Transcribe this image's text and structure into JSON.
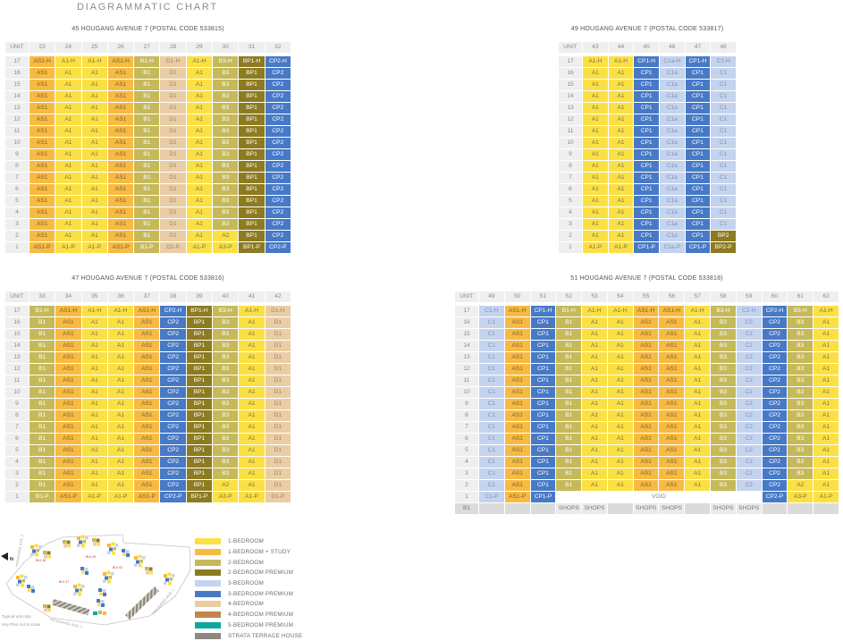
{
  "page_title": "DIAGRAMMATIC CHART",
  "unit_header": "UNIT",
  "shops_label": "SHOPS",
  "code_types": {
    "A1": "1br",
    "A2": "1br",
    "A3": "1br",
    "AS1": "1brs",
    "B1": "2br",
    "B3": "2br",
    "BP1": "2brp",
    "BP2": "2brp",
    "C1": "3br",
    "C1a": "3br",
    "C2": "3br",
    "CP1": "3brp",
    "CP2": "3brp",
    "D1": "4br",
    "VOID": "void"
  },
  "type_colors": {
    "1br": {
      "bg": "#FBE044",
      "fg": "#77704E"
    },
    "1brs": {
      "bg": "#F7BA42",
      "fg": "#7A6238"
    },
    "2br": {
      "bg": "#C6B95A",
      "fg": "#FFFFFF"
    },
    "2brp": {
      "bg": "#8C7B21",
      "fg": "#FFFFFF"
    },
    "3br": {
      "bg": "#C4D3EE",
      "fg": "#8292B2"
    },
    "3brp": {
      "bg": "#4779C6",
      "fg": "#FFFFFF"
    },
    "4br": {
      "bg": "#EACDA5",
      "fg": "#9F8566"
    },
    "void": {
      "bg": "#FFFFFF",
      "fg": "#8A8A8A"
    }
  },
  "blocks": [
    {
      "title": "45 HOUGANG AVENUE 7 (POSTAL CODE 533815)",
      "units": [
        "23",
        "24",
        "25",
        "26",
        "27",
        "28",
        "29",
        "30",
        "31",
        "32"
      ],
      "floors": [
        "17",
        "16",
        "15",
        "14",
        "13",
        "12",
        "11",
        "10",
        "9",
        "8",
        "7",
        "6",
        "5",
        "4",
        "3",
        "2",
        "1"
      ],
      "rows": [
        [
          "AS1-H",
          "A1-H",
          "A1-H",
          "AS1-H",
          "B1-H",
          "D1-H",
          "A1-H",
          "B3-H",
          "BP1-H",
          "CP2-H"
        ],
        [
          "AS1",
          "A1",
          "A1",
          "AS1",
          "B1",
          "D1",
          "A1",
          "B3",
          "BP1",
          "CP2"
        ],
        [
          "AS1",
          "A1",
          "A1",
          "AS1",
          "B1",
          "D1",
          "A1",
          "B3",
          "BP1",
          "CP2"
        ],
        [
          "AS1",
          "A1",
          "A1",
          "AS1",
          "B1",
          "D1",
          "A1",
          "B3",
          "BP1",
          "CP2"
        ],
        [
          "AS1",
          "A1",
          "A1",
          "AS1",
          "B1",
          "D1",
          "A1",
          "B3",
          "BP1",
          "CP2"
        ],
        [
          "AS1",
          "A1",
          "A1",
          "AS1",
          "B1",
          "D1",
          "A1",
          "B3",
          "BP1",
          "CP2"
        ],
        [
          "AS1",
          "A1",
          "A1",
          "AS1",
          "B1",
          "D1",
          "A1",
          "B3",
          "BP1",
          "CP2"
        ],
        [
          "AS1",
          "A1",
          "A1",
          "AS1",
          "B1",
          "D1",
          "A1",
          "B3",
          "BP1",
          "CP2"
        ],
        [
          "AS1",
          "A1",
          "A1",
          "AS1",
          "B1",
          "D1",
          "A1",
          "B3",
          "BP1",
          "CP2"
        ],
        [
          "AS1",
          "A1",
          "A1",
          "AS1",
          "B1",
          "D1",
          "A1",
          "B3",
          "BP1",
          "CP2"
        ],
        [
          "AS1",
          "A1",
          "A1",
          "AS1",
          "B1",
          "D1",
          "A1",
          "B3",
          "BP1",
          "CP2"
        ],
        [
          "AS1",
          "A1",
          "A1",
          "AS1",
          "B1",
          "D1",
          "A1",
          "B3",
          "BP1",
          "CP2"
        ],
        [
          "AS1",
          "A1",
          "A1",
          "AS1",
          "B1",
          "D1",
          "A1",
          "B3",
          "BP1",
          "CP2"
        ],
        [
          "AS1",
          "A1",
          "A1",
          "AS1",
          "B1",
          "D1",
          "A1",
          "B3",
          "BP1",
          "CP2"
        ],
        [
          "AS1",
          "A1",
          "A1",
          "AS1",
          "B1",
          "D1",
          "A1",
          "B3",
          "BP1",
          "CP2"
        ],
        [
          "AS1",
          "A1",
          "A1",
          "AS1",
          "B1",
          "D1",
          "A1",
          "A2",
          "BP1",
          "CP2"
        ],
        [
          "AS1-P",
          "A1-P",
          "A1-P",
          "AS1-P",
          "B1-P",
          "D1-P",
          "A1-P",
          "A3-P",
          "BP1-P",
          "CP2-P"
        ]
      ]
    },
    {
      "title": "49 HOUGANG AVENUE 7 (POSTAL CODE 533817)",
      "units": [
        "43",
        "44",
        "45",
        "46",
        "47",
        "48"
      ],
      "floors": [
        "17",
        "16",
        "15",
        "14",
        "13",
        "12",
        "11",
        "10",
        "9",
        "8",
        "7",
        "6",
        "5",
        "4",
        "3",
        "2",
        "1"
      ],
      "rows": [
        [
          "A1-H",
          "A1-H",
          "CP1-H",
          "C1a-H",
          "CP1-H",
          "C1-H"
        ],
        [
          "A1",
          "A1",
          "CP1",
          "C1a",
          "CP1",
          "C1"
        ],
        [
          "A1",
          "A1",
          "CP1",
          "C1a",
          "CP1",
          "C1"
        ],
        [
          "A1",
          "A1",
          "CP1",
          "C1a",
          "CP1",
          "C1"
        ],
        [
          "A1",
          "A1",
          "CP1",
          "C1a",
          "CP1",
          "C1"
        ],
        [
          "A1",
          "A1",
          "CP1",
          "C1a",
          "CP1",
          "C1"
        ],
        [
          "A1",
          "A1",
          "CP1",
          "C1a",
          "CP1",
          "C1"
        ],
        [
          "A1",
          "A1",
          "CP1",
          "C1a",
          "CP1",
          "C1"
        ],
        [
          "A1",
          "A1",
          "CP1",
          "C1a",
          "CP1",
          "C1"
        ],
        [
          "A1",
          "A1",
          "CP1",
          "C1a",
          "CP1",
          "C1"
        ],
        [
          "A1",
          "A1",
          "CP1",
          "C1a",
          "CP1",
          "C1"
        ],
        [
          "A1",
          "A1",
          "CP1",
          "C1a",
          "CP1",
          "C1"
        ],
        [
          "A1",
          "A1",
          "CP1",
          "C1a",
          "CP1",
          "C1"
        ],
        [
          "A1",
          "A1",
          "CP1",
          "C1a",
          "CP1",
          "C1"
        ],
        [
          "A1",
          "A1",
          "CP1",
          "C1a",
          "CP1",
          "C1"
        ],
        [
          "A1",
          "A1",
          "CP1",
          "C1a",
          "CP1",
          "BP2"
        ],
        [
          "A1-P",
          "A1-P",
          "CP1-P",
          "C1a-P",
          "CP1-P",
          "BP2-P"
        ]
      ]
    },
    {
      "title": "47 HOUGANG AVENUE 7 (POSTAL CODE 533816)",
      "units": [
        "33",
        "34",
        "35",
        "36",
        "37",
        "38",
        "39",
        "40",
        "41",
        "42"
      ],
      "floors": [
        "17",
        "16",
        "15",
        "14",
        "13",
        "12",
        "11",
        "10",
        "9",
        "8",
        "7",
        "6",
        "5",
        "4",
        "3",
        "2",
        "1"
      ],
      "rows": [
        [
          "B1-H",
          "AS1-H",
          "A1-H",
          "A1-H",
          "AS1-H",
          "CP2-H",
          "BP1-H",
          "B3-H",
          "A1-H",
          "D1-H"
        ],
        [
          "B1",
          "AS1",
          "A1",
          "A1",
          "AS1",
          "CP2",
          "BP1",
          "B3",
          "A1",
          "D1"
        ],
        [
          "B1",
          "AS1",
          "A1",
          "A1",
          "AS1",
          "CP2",
          "BP1",
          "B3",
          "A1",
          "D1"
        ],
        [
          "B1",
          "AS1",
          "A1",
          "A1",
          "AS1",
          "CP2",
          "BP1",
          "B3",
          "A1",
          "D1"
        ],
        [
          "B1",
          "AS1",
          "A1",
          "A1",
          "AS1",
          "CP2",
          "BP1",
          "B3",
          "A1",
          "D1"
        ],
        [
          "B1",
          "AS1",
          "A1",
          "A1",
          "AS1",
          "CP2",
          "BP1",
          "B3",
          "A1",
          "D1"
        ],
        [
          "B1",
          "AS1",
          "A1",
          "A1",
          "AS1",
          "CP2",
          "BP1",
          "B3",
          "A1",
          "D1"
        ],
        [
          "B1",
          "AS1",
          "A1",
          "A1",
          "AS1",
          "CP2",
          "BP1",
          "B3",
          "A1",
          "D1"
        ],
        [
          "B1",
          "AS1",
          "A1",
          "A1",
          "AS1",
          "CP2",
          "BP1",
          "B3",
          "A1",
          "D1"
        ],
        [
          "B1",
          "AS1",
          "A1",
          "A1",
          "AS1",
          "CP2",
          "BP1",
          "B3",
          "A1",
          "D1"
        ],
        [
          "B1",
          "AS1",
          "A1",
          "A1",
          "AS1",
          "CP2",
          "BP1",
          "B3",
          "A1",
          "D1"
        ],
        [
          "B1",
          "AS1",
          "A1",
          "A1",
          "AS1",
          "CP2",
          "BP1",
          "B3",
          "A1",
          "D1"
        ],
        [
          "B1",
          "AS1",
          "A1",
          "A1",
          "AS1",
          "CP2",
          "BP1",
          "B3",
          "A1",
          "D1"
        ],
        [
          "B1",
          "AS1",
          "A1",
          "A1",
          "AS1",
          "CP2",
          "BP1",
          "B3",
          "A1",
          "D1"
        ],
        [
          "B1",
          "AS1",
          "A1",
          "A1",
          "AS1",
          "CP2",
          "BP1",
          "B3",
          "A1",
          "D1"
        ],
        [
          "B1",
          "AS1",
          "A1",
          "A1",
          "AS1",
          "CP2",
          "BP1",
          "A2",
          "A1",
          "D1"
        ],
        [
          "B1-P",
          "AS1-P",
          "A1-P",
          "A1-P",
          "AS1-P",
          "CP2-P",
          "BP1-P",
          "A3-P",
          "A1-P",
          "D1-P"
        ]
      ]
    },
    {
      "title": "51 HOUGANG AVENUE 7 (POSTAL CODE 533818)",
      "units": [
        "49",
        "50",
        "51",
        "52",
        "53",
        "54",
        "55",
        "56",
        "57",
        "58",
        "59",
        "60",
        "61",
        "62"
      ],
      "floors": [
        "17",
        "16",
        "15",
        "14",
        "13",
        "12",
        "11",
        "10",
        "9",
        "8",
        "7",
        "6",
        "5",
        "4",
        "3",
        "2",
        "1"
      ],
      "rows": [
        [
          "C1-H",
          "AS1-H",
          "CP1-H",
          "B1-H",
          "A1-H",
          "A1-H",
          "AS1-H",
          "AS1-H",
          "A1-H",
          "B3-H",
          "C2-H",
          "CP2-H",
          "B3-H",
          "A1-H"
        ],
        [
          "C1",
          "AS1",
          "CP1",
          "B1",
          "A1",
          "A1",
          "AS1",
          "AS1",
          "A1",
          "B3",
          "C2",
          "CP2",
          "B3",
          "A1"
        ],
        [
          "C1",
          "AS1",
          "CP1",
          "B1",
          "A1",
          "A1",
          "AS1",
          "AS1",
          "A1",
          "B3",
          "C2",
          "CP2",
          "B3",
          "A1"
        ],
        [
          "C1",
          "AS1",
          "CP1",
          "B1",
          "A1",
          "A1",
          "AS1",
          "AS1",
          "A1",
          "B3",
          "C2",
          "CP2",
          "B3",
          "A1"
        ],
        [
          "C1",
          "AS1",
          "CP1",
          "B1",
          "A1",
          "A1",
          "AS1",
          "AS1",
          "A1",
          "B3",
          "C2",
          "CP2",
          "B3",
          "A1"
        ],
        [
          "C1",
          "AS1",
          "CP1",
          "B1",
          "A1",
          "A1",
          "AS1",
          "AS1",
          "A1",
          "B3",
          "C2",
          "CP2",
          "B3",
          "A1"
        ],
        [
          "C1",
          "AS1",
          "CP1",
          "B1",
          "A1",
          "A1",
          "AS1",
          "AS1",
          "A1",
          "B3",
          "C2",
          "CP2",
          "B3",
          "A1"
        ],
        [
          "C1",
          "AS1",
          "CP1",
          "B1",
          "A1",
          "A1",
          "AS1",
          "AS1",
          "A1",
          "B3",
          "C2",
          "CP2",
          "B3",
          "A1"
        ],
        [
          "C1",
          "AS1",
          "CP1",
          "B1",
          "A1",
          "A1",
          "AS1",
          "AS1",
          "A1",
          "B3",
          "C2",
          "CP2",
          "B3",
          "A1"
        ],
        [
          "C1",
          "AS1",
          "CP1",
          "B1",
          "A1",
          "A1",
          "AS1",
          "AS1",
          "A1",
          "B3",
          "C2",
          "CP2",
          "B3",
          "A1"
        ],
        [
          "C1",
          "AS1",
          "CP1",
          "B1",
          "A1",
          "A1",
          "AS1",
          "AS1",
          "A1",
          "B3",
          "C2",
          "CP2",
          "B3",
          "A1"
        ],
        [
          "C1",
          "AS1",
          "CP1",
          "B1",
          "A1",
          "A1",
          "AS1",
          "AS1",
          "A1",
          "B3",
          "C2",
          "CP2",
          "B3",
          "A1"
        ],
        [
          "C1",
          "AS1",
          "CP1",
          "B1",
          "A1",
          "A1",
          "AS1",
          "AS1",
          "A1",
          "B3",
          "C2",
          "CP2",
          "B3",
          "A1"
        ],
        [
          "C1",
          "AS1",
          "CP1",
          "B1",
          "A1",
          "A1",
          "AS1",
          "AS1",
          "A1",
          "B3",
          "C2",
          "CP2",
          "B3",
          "A1"
        ],
        [
          "C1",
          "AS1",
          "CP1",
          "B1",
          "A1",
          "A1",
          "AS1",
          "AS1",
          "A1",
          "B3",
          "C2",
          "CP2",
          "B3",
          "A1"
        ],
        [
          "C1",
          "AS1",
          "CP1",
          "B1",
          "A1",
          "A1",
          "AS1",
          "AS1",
          "A1",
          "B3",
          "C2",
          "CP2",
          "A2",
          "A1"
        ],
        [
          "C1-P",
          "AS1-P",
          "CP1-P",
          {
            "code": "VOID",
            "span": 8
          },
          "CP2-P",
          "A3-P",
          "A1-P"
        ]
      ],
      "basement": {
        "label": "B1",
        "shops_units": [
          "52",
          "53",
          "55",
          "56",
          "58",
          "59"
        ]
      }
    }
  ],
  "legend": {
    "items": [
      {
        "label": "1-BEDROOM",
        "color": "#FBE044"
      },
      {
        "label": "1-BEDROOM + STUDY",
        "color": "#F7BA42"
      },
      {
        "label": "2-BEDROOM",
        "color": "#C6B95A"
      },
      {
        "label": "2-BEDROOM PREMIUM",
        "color": "#8C7B21"
      },
      {
        "label": "3-BEDROOM",
        "color": "#C4D3EE"
      },
      {
        "label": "3-BEDROOM PREMIUM",
        "color": "#4779C6"
      },
      {
        "label": "4-BEDROOM",
        "color": "#EACDA5"
      },
      {
        "label": "4-BEDROOM PREMIUM",
        "color": "#C1854D"
      },
      {
        "label": "5-BEDROOM PREMIUM",
        "color": "#0CA89B"
      },
      {
        "label": "STRATA TERRACE HOUSE",
        "color": "#8E8880"
      }
    ]
  },
  "keyplan": {
    "north_label": "N",
    "roads": [
      "HOUGANG AVE 2",
      "HOUGANG AVE 7",
      "HOUGANG AVE 7"
    ],
    "block_labels": [
      "BLK 45",
      "BLK 47",
      "BLK 49",
      "BLK 51"
    ],
    "notes": [
      "Typical unit only",
      "Key Plan not to scale"
    ]
  }
}
